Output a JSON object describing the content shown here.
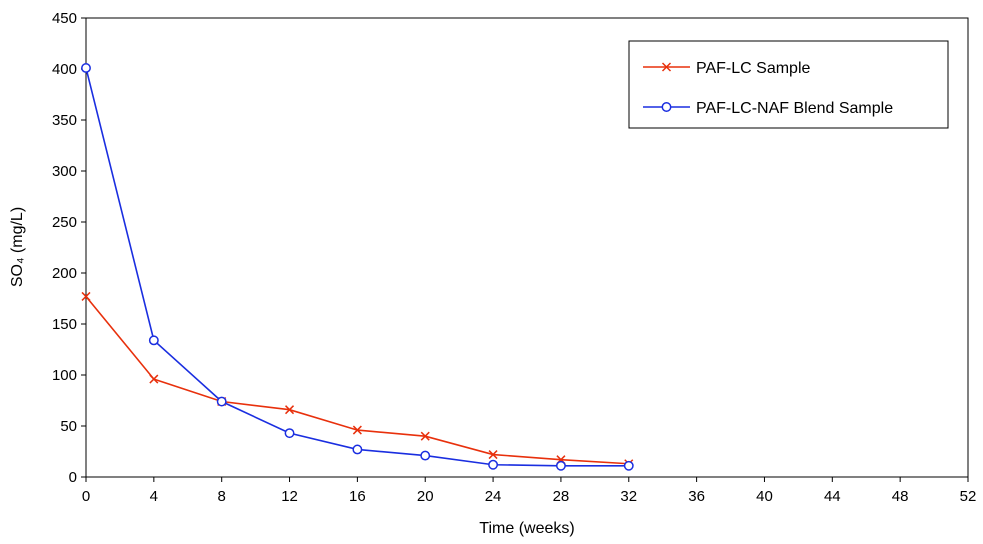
{
  "chart_data": {
    "type": "line",
    "title": "",
    "xlabel": "Time (weeks)",
    "ylabel": "SO₄ (mg/L)",
    "xlim": [
      0,
      52
    ],
    "ylim": [
      0,
      450
    ],
    "x_ticks": [
      0,
      4,
      8,
      12,
      16,
      20,
      24,
      28,
      32,
      36,
      40,
      44,
      48,
      52
    ],
    "y_ticks": [
      0,
      50,
      100,
      150,
      200,
      250,
      300,
      350,
      400,
      450
    ],
    "grid": false,
    "legend_position": "top-right",
    "series": [
      {
        "name": "PAF-LC Sample",
        "color": "#e8300c",
        "marker": "x",
        "x": [
          0,
          4,
          8,
          12,
          16,
          20,
          24,
          28,
          32
        ],
        "y": [
          177,
          96,
          74,
          66,
          46,
          40,
          22,
          17,
          13
        ]
      },
      {
        "name": "PAF-LC-NAF Blend Sample",
        "color": "#1a2ee0",
        "marker": "circle",
        "x": [
          0,
          4,
          8,
          12,
          16,
          20,
          24,
          28,
          32
        ],
        "y": [
          401,
          134,
          74,
          43,
          27,
          21,
          12,
          11,
          11
        ]
      }
    ]
  }
}
